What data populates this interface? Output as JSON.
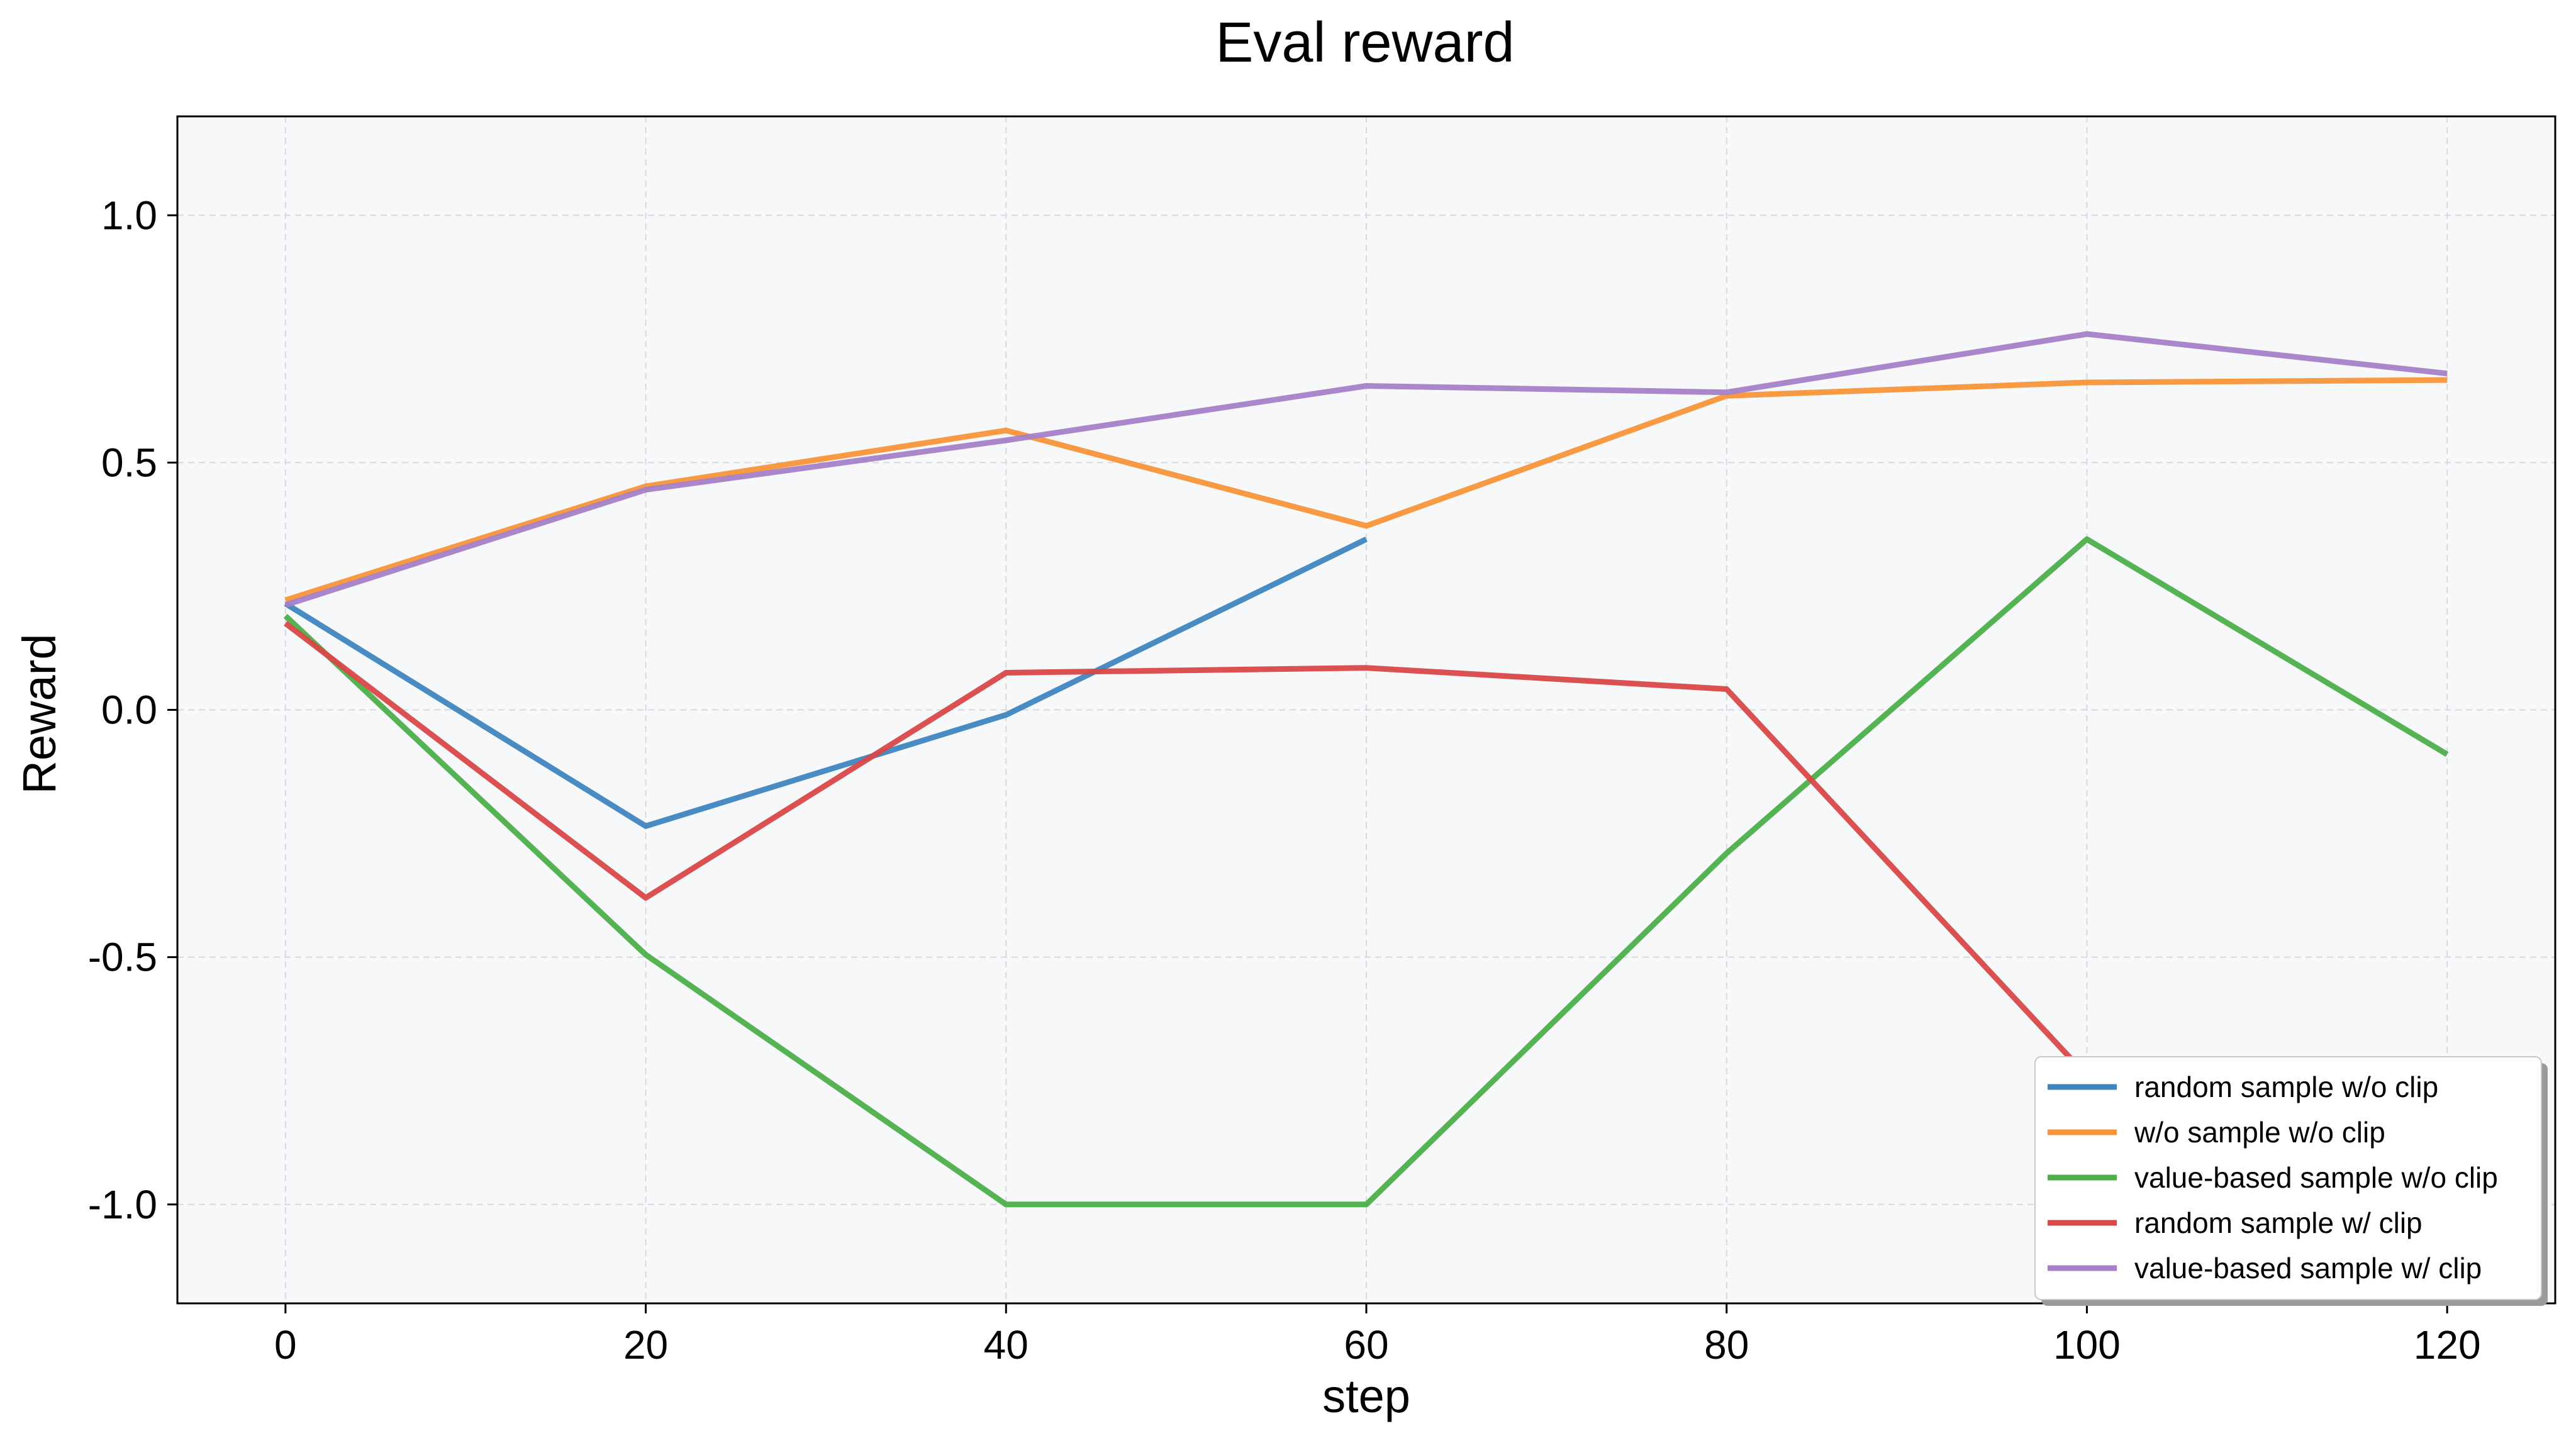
{
  "chart_data": {
    "type": "line",
    "title": "Eval reward",
    "xlabel": "step",
    "ylabel": "Reward",
    "xlim": [
      -6,
      126
    ],
    "ylim": [
      -1.2,
      1.2
    ],
    "xticks": [
      0,
      20,
      40,
      60,
      80,
      100,
      120
    ],
    "xtick_labels": [
      "0",
      "20",
      "40",
      "60",
      "80",
      "100",
      "120"
    ],
    "yticks": [
      1.0,
      0.5,
      0.0,
      -0.5,
      -1.0
    ],
    "ytick_labels": [
      "1.0",
      "0.5",
      "0.0",
      "-0.5",
      "-1.0"
    ],
    "grid": true,
    "legend_position": "bottom-right",
    "plot_background": "#f7f8fa",
    "series": [
      {
        "name": "random sample w/o clip",
        "color": "#3f86c0",
        "points": [
          [
            0,
            0.215
          ],
          [
            20,
            -0.235
          ],
          [
            40,
            -0.01
          ],
          [
            60,
            0.345
          ]
        ]
      },
      {
        "name": "w/o sample w/o clip",
        "color": "#f8953a",
        "points": [
          [
            0,
            0.222
          ],
          [
            20,
            0.452
          ],
          [
            40,
            0.565
          ],
          [
            60,
            0.372
          ],
          [
            80,
            0.635
          ],
          [
            100,
            0.662
          ],
          [
            120,
            0.667
          ]
        ]
      },
      {
        "name": "value-based sample w/o clip",
        "color": "#4caf4a",
        "points": [
          [
            0,
            0.19
          ],
          [
            20,
            -0.495
          ],
          [
            40,
            -1.0
          ],
          [
            60,
            -1.0
          ],
          [
            80,
            -0.29
          ],
          [
            100,
            0.345
          ],
          [
            120,
            -0.09
          ]
        ]
      },
      {
        "name": "random sample w/ clip",
        "color": "#d94848",
        "points": [
          [
            0,
            0.175
          ],
          [
            20,
            -0.38
          ],
          [
            40,
            0.075
          ],
          [
            60,
            0.085
          ],
          [
            80,
            0.042
          ],
          [
            100,
            -0.74
          ]
        ]
      },
      {
        "name": "value-based sample w/ clip",
        "color": "#a57fc8",
        "points": [
          [
            0,
            0.212
          ],
          [
            20,
            0.445
          ],
          [
            40,
            0.545
          ],
          [
            60,
            0.655
          ],
          [
            80,
            0.642
          ],
          [
            100,
            0.76
          ],
          [
            120,
            0.68
          ]
        ]
      }
    ]
  }
}
